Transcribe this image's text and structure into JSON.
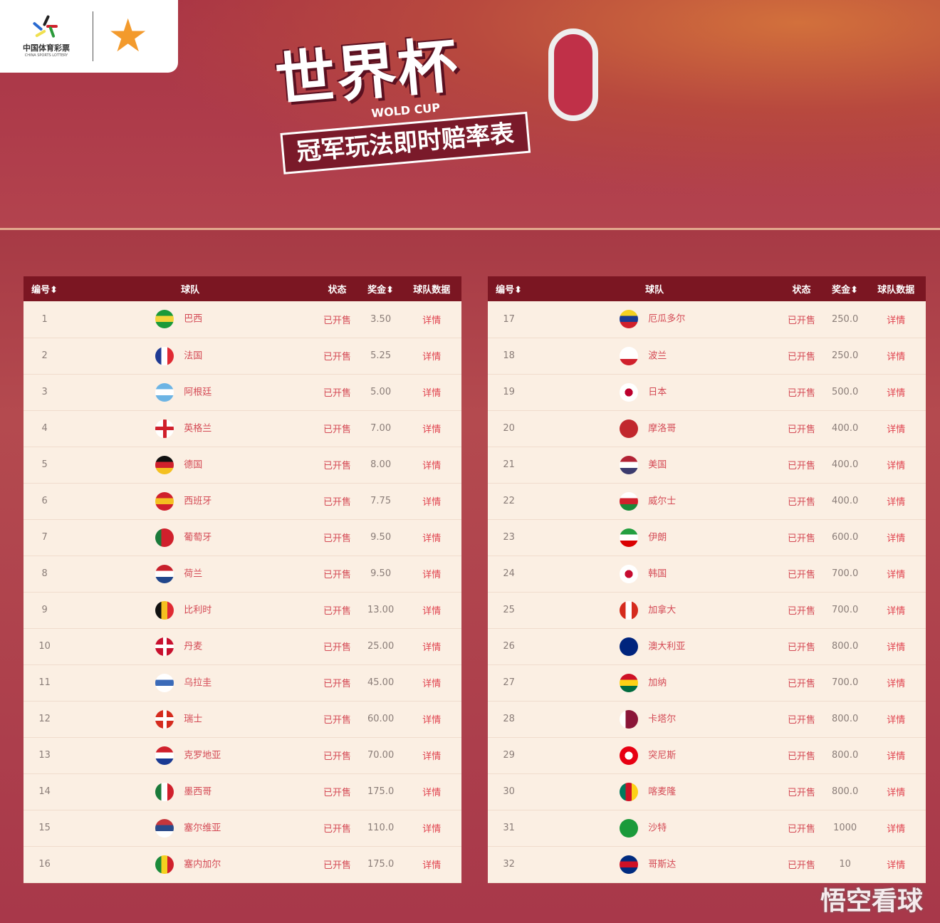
{
  "header": {
    "logo_text": "中国体育彩票",
    "logo_sub": "CHINA SPORTS LOTTERY",
    "title": "世界杯",
    "title_en": "WOLD CUP",
    "subtitle": "冠军玩法即时赔率表"
  },
  "columns": [
    "编号⬍",
    "球队",
    "状态",
    "奖金⬍",
    "球队数据"
  ],
  "status_label": "已开售",
  "detail_label": "详情",
  "watermark": "悟空看球",
  "colors": {
    "header_bg": "#7b1622",
    "row_bg": "#fbefe3",
    "accent": "#d44a55"
  },
  "left_rows": [
    {
      "no": "1",
      "team": "巴西",
      "odds": "3.50",
      "flag": [
        "#1a9a3a",
        "#f3d43a",
        "#1a9a3a"
      ]
    },
    {
      "no": "2",
      "team": "法国",
      "odds": "5.25",
      "flag": [
        "v",
        "#1f3a93",
        "#fff",
        "#e02a33"
      ]
    },
    {
      "no": "3",
      "team": "阿根廷",
      "odds": "5.00",
      "flag": [
        "#6cb4e4",
        "#fff",
        "#6cb4e4"
      ]
    },
    {
      "no": "4",
      "team": "英格兰",
      "odds": "7.00",
      "flag": [
        "cross",
        "#fff",
        "#d0202c"
      ]
    },
    {
      "no": "5",
      "team": "德国",
      "odds": "8.00",
      "flag": [
        "#111",
        "#d0202c",
        "#f4c020"
      ]
    },
    {
      "no": "6",
      "team": "西班牙",
      "odds": "7.75",
      "flag": [
        "#d0202c",
        "#f4c020",
        "#d0202c"
      ]
    },
    {
      "no": "7",
      "team": "葡萄牙",
      "odds": "9.50",
      "flag": [
        "v",
        "#1a7a3a",
        "#d0202c",
        "#d0202c"
      ]
    },
    {
      "no": "8",
      "team": "荷兰",
      "odds": "9.50",
      "flag": [
        "#c8202c",
        "#fff",
        "#21468b"
      ]
    },
    {
      "no": "9",
      "team": "比利时",
      "odds": "13.00",
      "flag": [
        "v",
        "#111",
        "#f4c020",
        "#e02a33"
      ]
    },
    {
      "no": "10",
      "team": "丹麦",
      "odds": "25.00",
      "flag": [
        "cross",
        "#c8102e",
        "#fff"
      ]
    },
    {
      "no": "11",
      "team": "乌拉圭",
      "odds": "45.00",
      "flag": [
        "#fff",
        "#3a6ab8",
        "#fff"
      ]
    },
    {
      "no": "12",
      "team": "瑞士",
      "odds": "60.00",
      "flag": [
        "cross",
        "#d52b1e",
        "#fff"
      ]
    },
    {
      "no": "13",
      "team": "克罗地亚",
      "odds": "70.00",
      "flag": [
        "#d0202c",
        "#fff",
        "#1a3a93"
      ]
    },
    {
      "no": "14",
      "team": "墨西哥",
      "odds": "175.0",
      "flag": [
        "v",
        "#1a7a3a",
        "#fff",
        "#d0202c"
      ]
    },
    {
      "no": "15",
      "team": "塞尔维亚",
      "odds": "110.0",
      "flag": [
        "#c6363c",
        "#2a4a8a",
        "#fff"
      ]
    },
    {
      "no": "16",
      "team": "塞内加尔",
      "odds": "175.0",
      "flag": [
        "v",
        "#1a8a3a",
        "#f4d020",
        "#d0202c"
      ]
    }
  ],
  "right_rows": [
    {
      "no": "17",
      "team": "厄瓜多尔",
      "odds": "250.0",
      "flag": [
        "#f4d020",
        "#1a3a93",
        "#d0202c"
      ]
    },
    {
      "no": "18",
      "team": "波兰",
      "odds": "250.0",
      "flag": [
        "#fff",
        "#fff",
        "#d0202c"
      ]
    },
    {
      "no": "19",
      "team": "日本",
      "odds": "500.0",
      "flag": [
        "dot",
        "#fff",
        "#bc002d"
      ]
    },
    {
      "no": "20",
      "team": "摩洛哥",
      "odds": "400.0",
      "flag": [
        "#c1272d",
        "#c1272d",
        "#c1272d"
      ]
    },
    {
      "no": "21",
      "team": "美国",
      "odds": "400.0",
      "flag": [
        "#b22234",
        "#fff",
        "#3c3b6e"
      ]
    },
    {
      "no": "22",
      "team": "威尔士",
      "odds": "400.0",
      "flag": [
        "#fff",
        "#d0202c",
        "#1a8a3a"
      ]
    },
    {
      "no": "23",
      "team": "伊朗",
      "odds": "600.0",
      "flag": [
        "#239f40",
        "#fff",
        "#da0000"
      ]
    },
    {
      "no": "24",
      "team": "韩国",
      "odds": "700.0",
      "flag": [
        "dot",
        "#fff",
        "#c60c30"
      ]
    },
    {
      "no": "25",
      "team": "加拿大",
      "odds": "700.0",
      "flag": [
        "v",
        "#d52b1e",
        "#fff",
        "#d52b1e"
      ]
    },
    {
      "no": "26",
      "team": "澳大利亚",
      "odds": "800.0",
      "flag": [
        "#00247d",
        "#00247d",
        "#00247d"
      ]
    },
    {
      "no": "27",
      "team": "加纳",
      "odds": "700.0",
      "flag": [
        "#ce1126",
        "#fcd116",
        "#006b3f"
      ]
    },
    {
      "no": "28",
      "team": "卡塔尔",
      "odds": "800.0",
      "flag": [
        "v",
        "#fff",
        "#8a1538",
        "#8a1538"
      ]
    },
    {
      "no": "29",
      "team": "突尼斯",
      "odds": "800.0",
      "flag": [
        "dot",
        "#e70013",
        "#fff"
      ]
    },
    {
      "no": "30",
      "team": "喀麦隆",
      "odds": "800.0",
      "flag": [
        "v",
        "#007a5e",
        "#ce1126",
        "#fcd116"
      ]
    },
    {
      "no": "31",
      "team": "沙特",
      "odds": "1000",
      "flag": [
        "#1a9a3a",
        "#1a9a3a",
        "#1a9a3a"
      ]
    },
    {
      "no": "32",
      "team": "哥斯达",
      "odds": "10",
      "flag": [
        "#002b7f",
        "#ce1126",
        "#002b7f"
      ]
    }
  ]
}
